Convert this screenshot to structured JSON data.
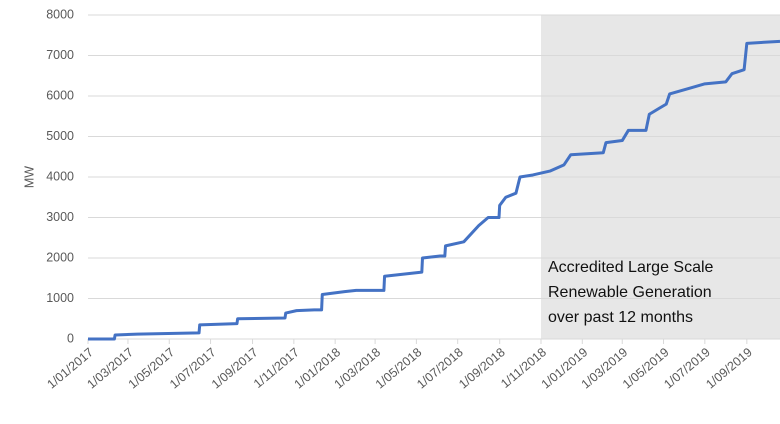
{
  "chart_data": {
    "type": "line",
    "y_label": "MW",
    "annotation": [
      "Accredited Large Scale",
      "Renewable Generation",
      "over past 12 months"
    ],
    "shade_from": "2018-11-01",
    "shade_color": "#e7e7e7",
    "grid": true,
    "xlim": [
      "2017-01-01",
      "2019-10-20"
    ],
    "ylim": [
      0,
      8000
    ],
    "yticks": [
      0,
      1000,
      2000,
      3000,
      4000,
      5000,
      6000,
      7000,
      8000
    ],
    "xticks": [
      {
        "value": "2017-01-01",
        "label": "1/01/2017"
      },
      {
        "value": "2017-03-01",
        "label": "1/03/2017"
      },
      {
        "value": "2017-05-01",
        "label": "1/05/2017"
      },
      {
        "value": "2017-07-01",
        "label": "1/07/2017"
      },
      {
        "value": "2017-09-01",
        "label": "1/09/2017"
      },
      {
        "value": "2017-11-01",
        "label": "1/11/2017"
      },
      {
        "value": "2018-01-01",
        "label": "1/01/2018"
      },
      {
        "value": "2018-03-01",
        "label": "1/03/2018"
      },
      {
        "value": "2018-05-01",
        "label": "1/05/2018"
      },
      {
        "value": "2018-07-01",
        "label": "1/07/2018"
      },
      {
        "value": "2018-09-01",
        "label": "1/09/2018"
      },
      {
        "value": "2018-11-01",
        "label": "1/11/2018"
      },
      {
        "value": "2019-01-01",
        "label": "1/01/2019"
      },
      {
        "value": "2019-03-01",
        "label": "1/03/2019"
      },
      {
        "value": "2019-05-01",
        "label": "1/05/2019"
      },
      {
        "value": "2019-07-01",
        "label": "1/07/2019"
      },
      {
        "value": "2019-09-01",
        "label": "1/09/2019"
      }
    ],
    "x": [
      "2017-01-01",
      "2017-02-09",
      "2017-02-10",
      "2017-03-15",
      "2017-06-14",
      "2017-06-15",
      "2017-08-09",
      "2017-08-10",
      "2017-10-19",
      "2017-10-20",
      "2017-11-05",
      "2017-12-01",
      "2017-12-12",
      "2017-12-13",
      "2018-01-15",
      "2018-02-01",
      "2018-03-14",
      "2018-03-15",
      "2018-05-09",
      "2018-05-10",
      "2018-06-05",
      "2018-06-12",
      "2018-06-13",
      "2018-07-10",
      "2018-08-01",
      "2018-08-15",
      "2018-08-31",
      "2018-09-01",
      "2018-09-10",
      "2018-09-25",
      "2018-10-01",
      "2018-10-20",
      "2018-11-15",
      "2018-12-05",
      "2018-12-15",
      "2019-02-01",
      "2019-02-05",
      "2019-03-01",
      "2019-03-10",
      "2019-04-05",
      "2019-04-10",
      "2019-04-25",
      "2019-05-05",
      "2019-05-10",
      "2019-06-10",
      "2019-07-01",
      "2019-08-01",
      "2019-08-10",
      "2019-08-28",
      "2019-09-01",
      "2019-10-20"
    ],
    "series": [
      {
        "name": "Generation",
        "color": "#4472c4",
        "values": [
          0,
          0,
          100,
          120,
          150,
          350,
          380,
          500,
          520,
          640,
          700,
          720,
          720,
          1100,
          1170,
          1200,
          1200,
          1550,
          1650,
          2000,
          2050,
          2050,
          2300,
          2400,
          2800,
          3000,
          3000,
          3300,
          3500,
          3600,
          4000,
          4050,
          4150,
          4300,
          4550,
          4600,
          4850,
          4900,
          5150,
          5150,
          5550,
          5700,
          5800,
          6050,
          6200,
          6300,
          6350,
          6550,
          6650,
          7300,
          7350
        ]
      }
    ]
  }
}
